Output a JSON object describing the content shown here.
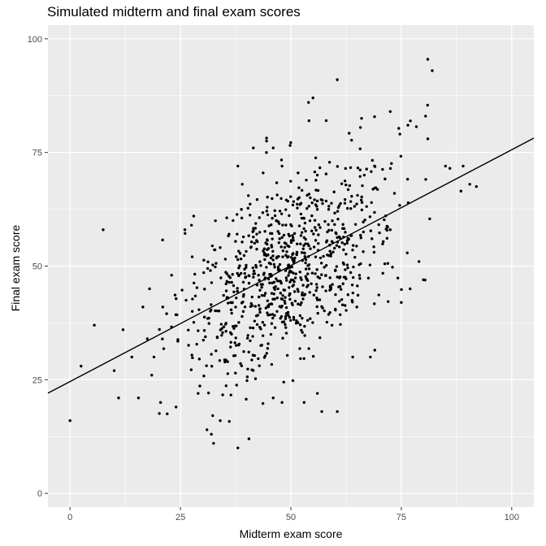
{
  "chart_data": {
    "type": "scatter",
    "title": "Simulated midterm and final exam scores",
    "xlabel": "Midterm exam score",
    "ylabel": "Final exam score",
    "xlim": [
      -5,
      105
    ],
    "ylim": [
      -3,
      103
    ],
    "x_ticks": [
      0,
      25,
      50,
      75,
      100
    ],
    "y_ticks": [
      0,
      25,
      50,
      75,
      100
    ],
    "x_tick_labels": [
      "0",
      "25",
      "50",
      "75",
      "100"
    ],
    "y_tick_labels": [
      "0",
      "25",
      "50",
      "75",
      "100"
    ],
    "grid": true,
    "legend": "none",
    "fit_line": {
      "intercept": 24.6,
      "slope": 0.51
    },
    "point_color": "#000000",
    "panel_background": "#ebebeb",
    "gridline_color": "#ffffff",
    "outliers": [
      [
        0,
        16
      ],
      [
        2.5,
        28
      ],
      [
        5.5,
        37
      ],
      [
        7.5,
        58
      ],
      [
        10,
        27
      ],
      [
        11,
        21
      ],
      [
        15.5,
        21
      ],
      [
        16.5,
        41
      ],
      [
        17.5,
        34
      ],
      [
        18.5,
        26
      ],
      [
        19,
        30
      ],
      [
        12,
        36
      ],
      [
        14,
        30
      ],
      [
        32.5,
        11
      ],
      [
        38,
        10
      ],
      [
        40.5,
        12
      ],
      [
        32,
        13
      ],
      [
        34,
        16
      ],
      [
        31,
        14
      ],
      [
        57,
        18
      ],
      [
        60.5,
        18
      ],
      [
        53,
        20
      ],
      [
        56,
        22
      ],
      [
        60.5,
        91
      ],
      [
        55,
        87
      ],
      [
        81,
        95.5
      ],
      [
        82,
        93
      ],
      [
        80.5,
        83
      ],
      [
        81,
        78
      ],
      [
        89,
        72
      ],
      [
        92,
        67.5
      ],
      [
        90.5,
        68
      ],
      [
        86,
        71.5
      ],
      [
        88.5,
        66.5
      ],
      [
        85,
        72
      ],
      [
        66,
        82.5
      ],
      [
        72.5,
        84
      ],
      [
        76.5,
        81
      ],
      [
        54,
        86
      ],
      [
        58,
        82
      ],
      [
        22,
        17.5
      ],
      [
        24,
        19
      ],
      [
        20.5,
        20
      ],
      [
        29,
        22
      ],
      [
        46,
        21
      ],
      [
        48,
        20
      ],
      [
        68,
        30
      ],
      [
        69,
        31.5
      ],
      [
        64,
        30
      ],
      [
        75,
        42
      ],
      [
        77,
        45
      ],
      [
        79,
        51
      ],
      [
        80,
        47
      ],
      [
        18,
        45
      ],
      [
        21,
        41
      ],
      [
        23,
        48
      ],
      [
        27.5,
        59
      ],
      [
        26,
        58
      ],
      [
        28,
        61
      ],
      [
        38,
        72
      ],
      [
        41.5,
        76
      ],
      [
        44.5,
        77.5
      ],
      [
        46,
        76
      ],
      [
        48,
        72
      ],
      [
        39,
        68
      ]
    ],
    "cluster": {
      "count": 850,
      "x_mean": 50,
      "x_sd": 12,
      "y_resid_sd": 10.5,
      "x_range": [
        20,
        82
      ],
      "y_range": [
        14,
        88
      ]
    }
  }
}
